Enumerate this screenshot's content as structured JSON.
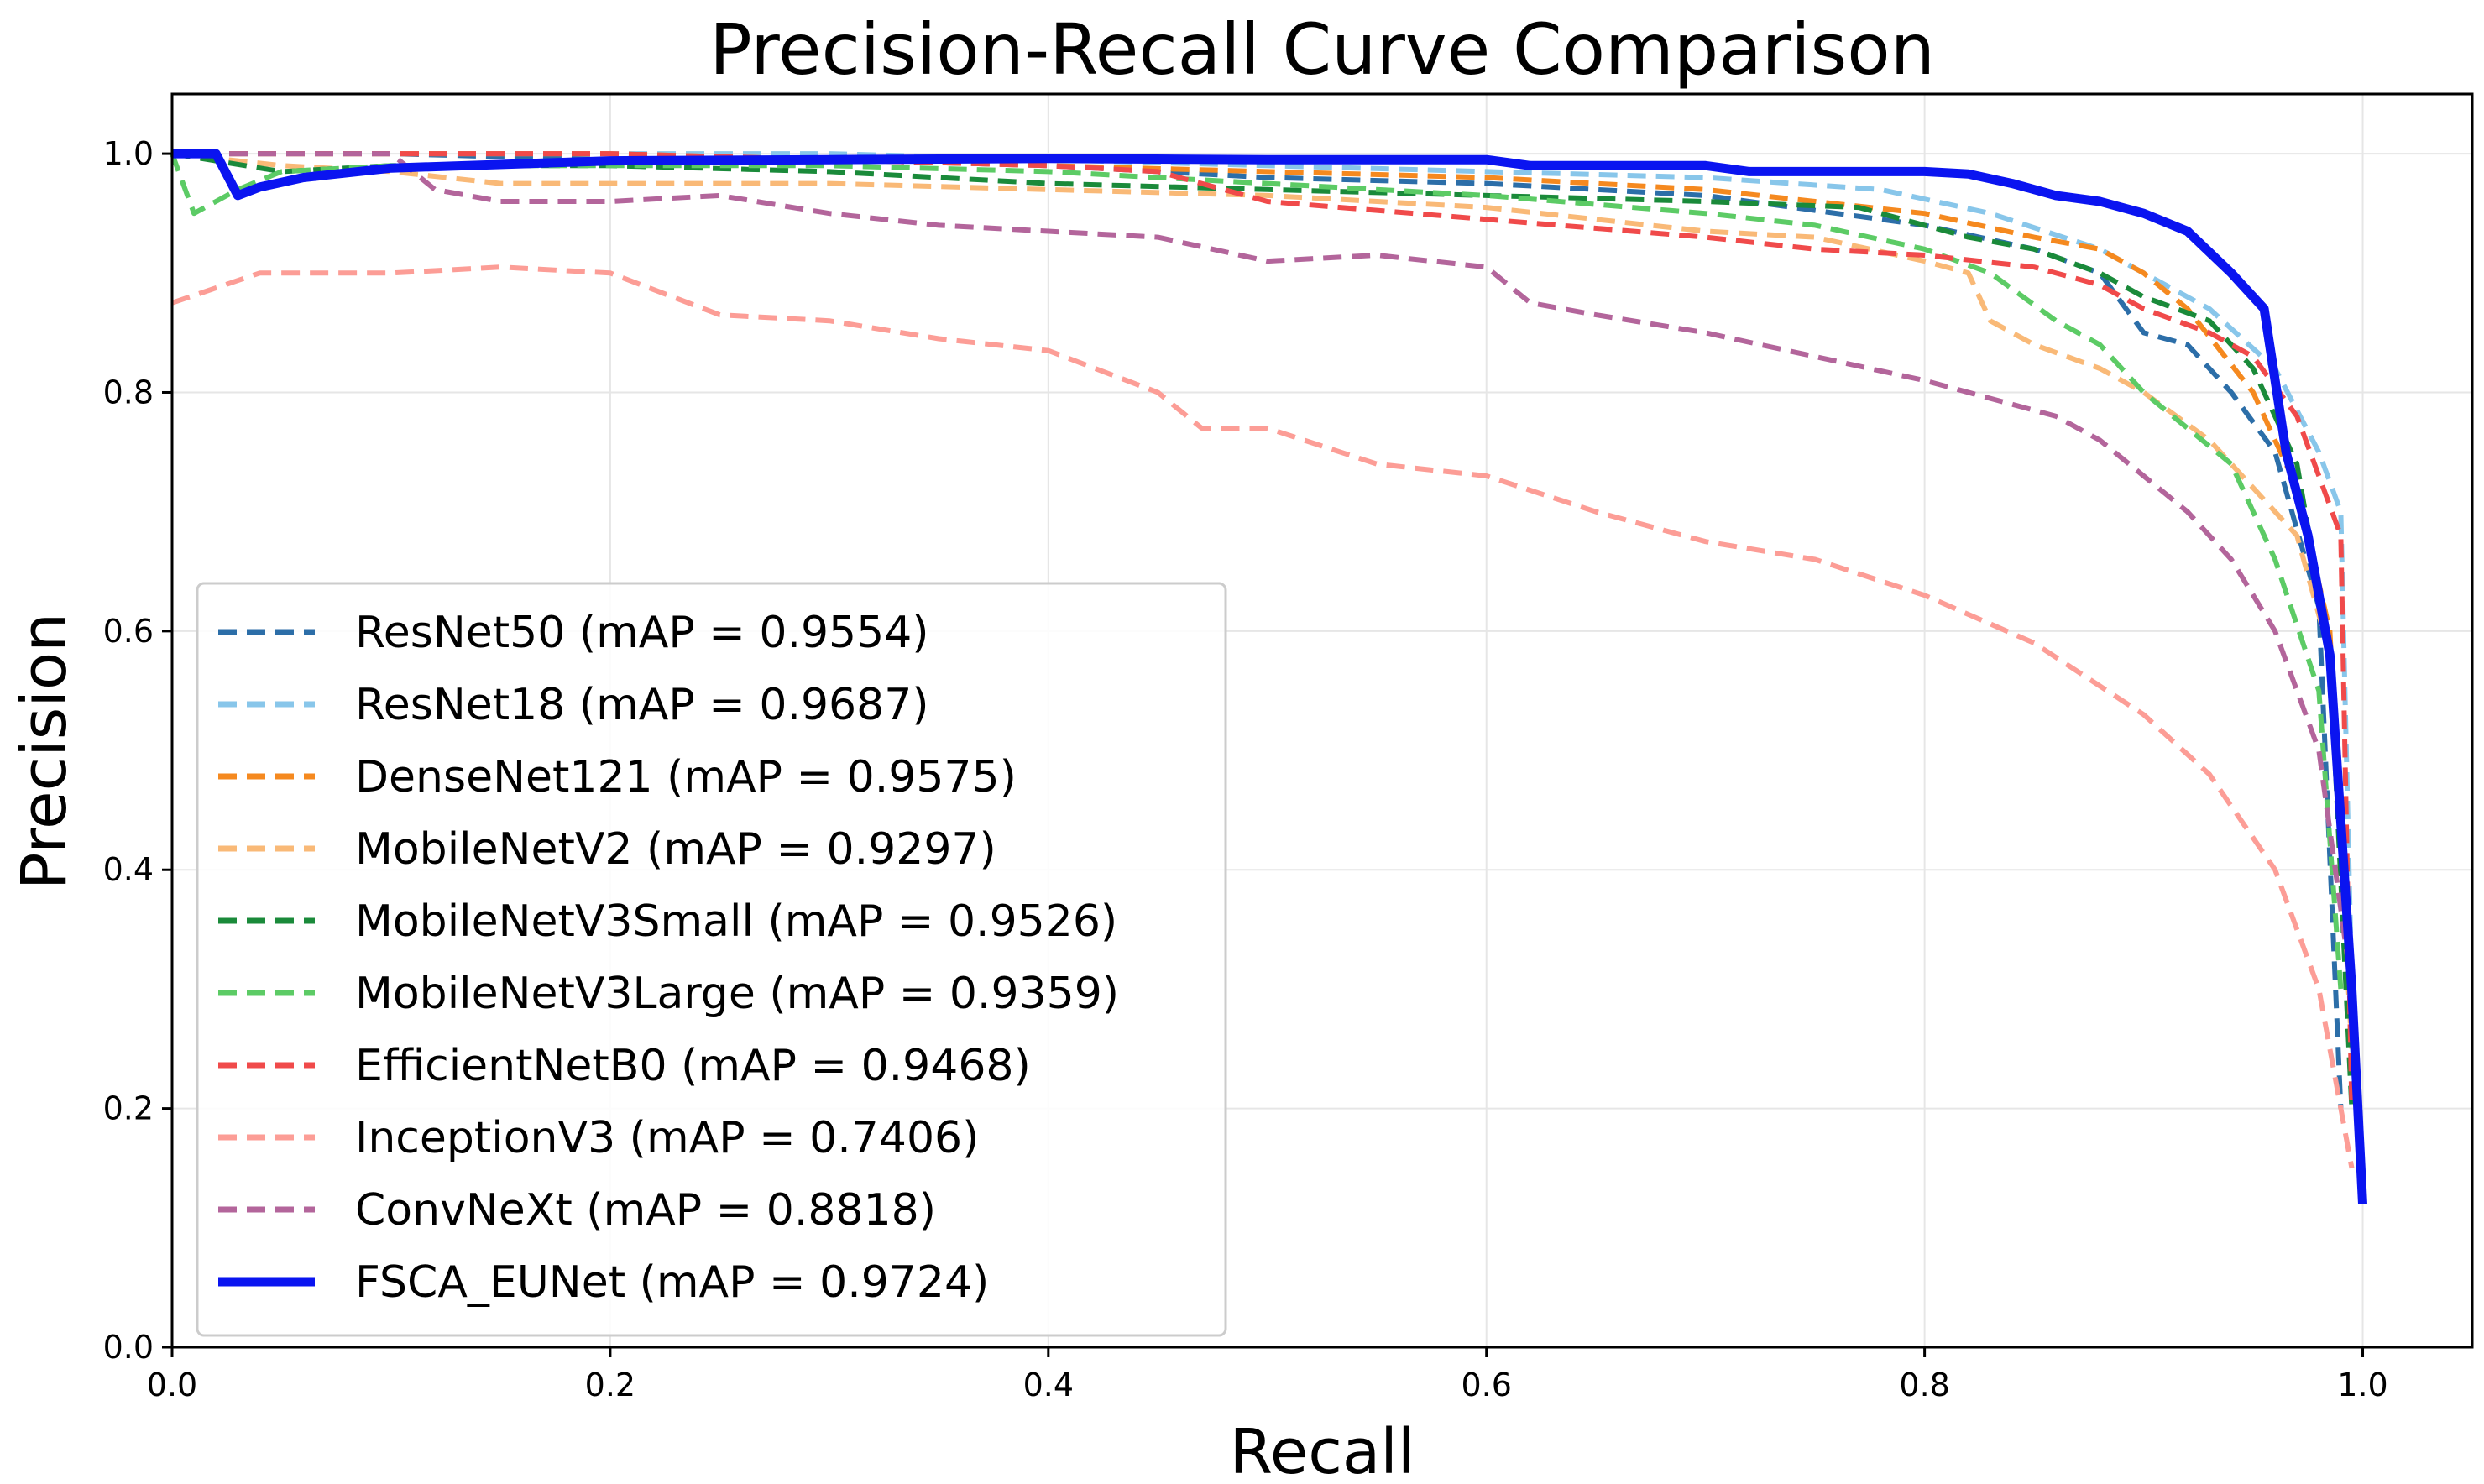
{
  "chart_data": {
    "type": "line",
    "title": "Precision-Recall Curve Comparison",
    "xlabel": "Recall",
    "ylabel": "Precision",
    "xlim": [
      0.0,
      1.05
    ],
    "ylim": [
      0.0,
      1.05
    ],
    "xticks": [
      "0.0",
      "0.2",
      "0.4",
      "0.6",
      "0.8",
      "1.0"
    ],
    "yticks": [
      "0.0",
      "0.2",
      "0.4",
      "0.6",
      "0.8",
      "1.0"
    ],
    "grid": true,
    "legend_position": "lower-left",
    "series": [
      {
        "name": "ResNet50 (mAP = 0.9554)",
        "color": "#2c6ea8",
        "dashed": true,
        "points": [
          [
            0,
            1.0
          ],
          [
            0.1,
            1.0
          ],
          [
            0.2,
            0.995
          ],
          [
            0.3,
            0.995
          ],
          [
            0.4,
            0.99
          ],
          [
            0.45,
            0.985
          ],
          [
            0.5,
            0.98
          ],
          [
            0.6,
            0.975
          ],
          [
            0.7,
            0.965
          ],
          [
            0.8,
            0.94
          ],
          [
            0.85,
            0.92
          ],
          [
            0.88,
            0.9
          ],
          [
            0.9,
            0.85
          ],
          [
            0.92,
            0.84
          ],
          [
            0.94,
            0.8
          ],
          [
            0.96,
            0.75
          ],
          [
            0.98,
            0.62
          ],
          [
            0.99,
            0.2
          ]
        ]
      },
      {
        "name": "ResNet18 (mAP = 0.9687)",
        "color": "#88c6ea",
        "dashed": true,
        "points": [
          [
            0,
            1.0
          ],
          [
            0.1,
            1.0
          ],
          [
            0.2,
            1.0
          ],
          [
            0.3,
            1.0
          ],
          [
            0.4,
            0.995
          ],
          [
            0.5,
            0.99
          ],
          [
            0.6,
            0.985
          ],
          [
            0.7,
            0.98
          ],
          [
            0.78,
            0.97
          ],
          [
            0.83,
            0.95
          ],
          [
            0.88,
            0.92
          ],
          [
            0.9,
            0.9
          ],
          [
            0.93,
            0.87
          ],
          [
            0.96,
            0.82
          ],
          [
            0.98,
            0.75
          ],
          [
            0.99,
            0.7
          ],
          [
            0.995,
            0.3
          ]
        ]
      },
      {
        "name": "DenseNet121 (mAP = 0.9575)",
        "color": "#f5891f",
        "dashed": true,
        "points": [
          [
            0,
            1.0
          ],
          [
            0.1,
            1.0
          ],
          [
            0.2,
            1.0
          ],
          [
            0.3,
            0.995
          ],
          [
            0.4,
            0.99
          ],
          [
            0.5,
            0.985
          ],
          [
            0.6,
            0.98
          ],
          [
            0.7,
            0.97
          ],
          [
            0.8,
            0.95
          ],
          [
            0.85,
            0.93
          ],
          [
            0.88,
            0.92
          ],
          [
            0.9,
            0.9
          ],
          [
            0.92,
            0.87
          ],
          [
            0.95,
            0.8
          ],
          [
            0.97,
            0.72
          ],
          [
            0.985,
            0.6
          ],
          [
            0.995,
            0.25
          ]
        ]
      },
      {
        "name": "MobileNetV2 (mAP = 0.9297)",
        "color": "#f9b977",
        "dashed": true,
        "points": [
          [
            0,
            1.0
          ],
          [
            0.05,
            0.99
          ],
          [
            0.1,
            0.985
          ],
          [
            0.15,
            0.975
          ],
          [
            0.2,
            0.975
          ],
          [
            0.3,
            0.975
          ],
          [
            0.4,
            0.97
          ],
          [
            0.5,
            0.965
          ],
          [
            0.6,
            0.955
          ],
          [
            0.7,
            0.935
          ],
          [
            0.75,
            0.93
          ],
          [
            0.8,
            0.91
          ],
          [
            0.82,
            0.9
          ],
          [
            0.83,
            0.86
          ],
          [
            0.85,
            0.84
          ],
          [
            0.88,
            0.82
          ],
          [
            0.9,
            0.8
          ],
          [
            0.93,
            0.76
          ],
          [
            0.95,
            0.72
          ],
          [
            0.97,
            0.68
          ],
          [
            0.985,
            0.58
          ],
          [
            0.995,
            0.25
          ]
        ]
      },
      {
        "name": "MobileNetV3Small (mAP = 0.9526)",
        "color": "#1a8a3a",
        "dashed": true,
        "points": [
          [
            0,
            1.0
          ],
          [
            0.05,
            0.985
          ],
          [
            0.1,
            0.99
          ],
          [
            0.2,
            0.99
          ],
          [
            0.3,
            0.985
          ],
          [
            0.4,
            0.975
          ],
          [
            0.5,
            0.97
          ],
          [
            0.6,
            0.965
          ],
          [
            0.7,
            0.96
          ],
          [
            0.77,
            0.955
          ],
          [
            0.82,
            0.93
          ],
          [
            0.85,
            0.92
          ],
          [
            0.88,
            0.9
          ],
          [
            0.9,
            0.88
          ],
          [
            0.93,
            0.86
          ],
          [
            0.95,
            0.82
          ],
          [
            0.97,
            0.74
          ],
          [
            0.985,
            0.58
          ],
          [
            0.995,
            0.2
          ]
        ]
      },
      {
        "name": "MobileNetV3Large (mAP = 0.9359)",
        "color": "#5ccb65",
        "dashed": true,
        "points": [
          [
            0,
            1.0
          ],
          [
            0.01,
            0.95
          ],
          [
            0.03,
            0.97
          ],
          [
            0.05,
            0.985
          ],
          [
            0.1,
            0.99
          ],
          [
            0.2,
            0.99
          ],
          [
            0.3,
            0.99
          ],
          [
            0.4,
            0.985
          ],
          [
            0.5,
            0.975
          ],
          [
            0.6,
            0.965
          ],
          [
            0.7,
            0.95
          ],
          [
            0.75,
            0.94
          ],
          [
            0.8,
            0.92
          ],
          [
            0.83,
            0.9
          ],
          [
            0.86,
            0.86
          ],
          [
            0.88,
            0.84
          ],
          [
            0.9,
            0.8
          ],
          [
            0.92,
            0.77
          ],
          [
            0.94,
            0.74
          ],
          [
            0.96,
            0.66
          ],
          [
            0.98,
            0.55
          ],
          [
            0.99,
            0.3
          ]
        ]
      },
      {
        "name": "EfficientNetB0 (mAP = 0.9468)",
        "color": "#f04a4a",
        "dashed": true,
        "points": [
          [
            0,
            1.0
          ],
          [
            0.1,
            1.0
          ],
          [
            0.2,
            1.0
          ],
          [
            0.3,
            0.995
          ],
          [
            0.4,
            0.99
          ],
          [
            0.45,
            0.985
          ],
          [
            0.5,
            0.96
          ],
          [
            0.6,
            0.945
          ],
          [
            0.7,
            0.93
          ],
          [
            0.75,
            0.92
          ],
          [
            0.8,
            0.915
          ],
          [
            0.85,
            0.905
          ],
          [
            0.88,
            0.89
          ],
          [
            0.9,
            0.87
          ],
          [
            0.93,
            0.85
          ],
          [
            0.95,
            0.83
          ],
          [
            0.97,
            0.78
          ],
          [
            0.99,
            0.68
          ],
          [
            0.995,
            0.2
          ]
        ]
      },
      {
        "name": "InceptionV3 (mAP = 0.7406)",
        "color": "#fc9d96",
        "dashed": true,
        "points": [
          [
            0,
            0.875
          ],
          [
            0.04,
            0.9
          ],
          [
            0.1,
            0.9
          ],
          [
            0.15,
            0.905
          ],
          [
            0.2,
            0.9
          ],
          [
            0.25,
            0.865
          ],
          [
            0.3,
            0.86
          ],
          [
            0.35,
            0.845
          ],
          [
            0.4,
            0.835
          ],
          [
            0.45,
            0.8
          ],
          [
            0.47,
            0.77
          ],
          [
            0.5,
            0.77
          ],
          [
            0.55,
            0.74
          ],
          [
            0.6,
            0.73
          ],
          [
            0.65,
            0.7
          ],
          [
            0.7,
            0.675
          ],
          [
            0.75,
            0.66
          ],
          [
            0.8,
            0.63
          ],
          [
            0.85,
            0.59
          ],
          [
            0.9,
            0.53
          ],
          [
            0.93,
            0.48
          ],
          [
            0.96,
            0.4
          ],
          [
            0.98,
            0.3
          ],
          [
            0.995,
            0.15
          ]
        ]
      },
      {
        "name": "ConvNeXt (mAP = 0.8818)",
        "color": "#b3659b",
        "dashed": true,
        "points": [
          [
            0,
            1.0
          ],
          [
            0.1,
            1.0
          ],
          [
            0.12,
            0.97
          ],
          [
            0.15,
            0.96
          ],
          [
            0.2,
            0.96
          ],
          [
            0.25,
            0.965
          ],
          [
            0.3,
            0.95
          ],
          [
            0.35,
            0.94
          ],
          [
            0.4,
            0.935
          ],
          [
            0.45,
            0.93
          ],
          [
            0.5,
            0.91
          ],
          [
            0.55,
            0.915
          ],
          [
            0.6,
            0.905
          ],
          [
            0.62,
            0.875
          ],
          [
            0.65,
            0.865
          ],
          [
            0.7,
            0.85
          ],
          [
            0.75,
            0.83
          ],
          [
            0.8,
            0.81
          ],
          [
            0.83,
            0.795
          ],
          [
            0.86,
            0.78
          ],
          [
            0.88,
            0.76
          ],
          [
            0.9,
            0.73
          ],
          [
            0.92,
            0.7
          ],
          [
            0.94,
            0.66
          ],
          [
            0.96,
            0.6
          ],
          [
            0.98,
            0.5
          ],
          [
            0.995,
            0.3
          ]
        ]
      },
      {
        "name": "FSCA_EUNet (mAP = 0.9724)",
        "color": "#0a14f0",
        "dashed": false,
        "points": [
          [
            0,
            1.0
          ],
          [
            0.02,
            1.0
          ],
          [
            0.03,
            0.965
          ],
          [
            0.04,
            0.972
          ],
          [
            0.06,
            0.98
          ],
          [
            0.1,
            0.988
          ],
          [
            0.2,
            0.994
          ],
          [
            0.3,
            0.995
          ],
          [
            0.4,
            0.996
          ],
          [
            0.5,
            0.995
          ],
          [
            0.6,
            0.995
          ],
          [
            0.62,
            0.99
          ],
          [
            0.7,
            0.99
          ],
          [
            0.72,
            0.985
          ],
          [
            0.8,
            0.985
          ],
          [
            0.82,
            0.983
          ],
          [
            0.84,
            0.975
          ],
          [
            0.86,
            0.965
          ],
          [
            0.88,
            0.96
          ],
          [
            0.9,
            0.95
          ],
          [
            0.92,
            0.935
          ],
          [
            0.94,
            0.9
          ],
          [
            0.955,
            0.87
          ],
          [
            0.965,
            0.75
          ],
          [
            0.975,
            0.68
          ],
          [
            0.985,
            0.58
          ],
          [
            0.995,
            0.3
          ],
          [
            1.0,
            0.12
          ]
        ]
      }
    ]
  }
}
